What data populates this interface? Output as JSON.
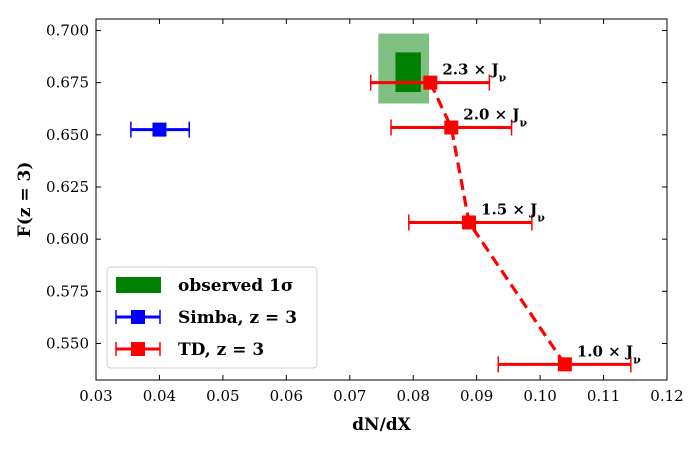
{
  "chart_data": {
    "type": "scatter",
    "xlabel": "dN/dX",
    "ylabel": "F(z = 3)",
    "xlim": [
      0.03,
      0.12
    ],
    "ylim": [
      0.5325,
      0.7055
    ],
    "xticks": [
      0.03,
      0.04,
      0.05,
      0.06,
      0.07,
      0.08,
      0.09,
      0.1,
      0.11,
      0.12
    ],
    "xtick_labels": [
      "0.03",
      "0.04",
      "0.05",
      "0.06",
      "0.07",
      "0.08",
      "0.09",
      "0.10",
      "0.11",
      "0.12"
    ],
    "yticks": [
      0.55,
      0.575,
      0.6,
      0.625,
      0.65,
      0.675,
      0.7
    ],
    "ytick_labels": [
      "0.550",
      "0.575",
      "0.600",
      "0.625",
      "0.650",
      "0.675",
      "0.700"
    ],
    "observed": {
      "name": "observed 1σ",
      "color": "#008000",
      "inner": {
        "x": [
          0.0772,
          0.0812
        ],
        "y": [
          0.6705,
          0.6895
        ]
      },
      "outer": {
        "x": [
          0.0745,
          0.0825
        ],
        "y": [
          0.665,
          0.6985
        ]
      }
    },
    "series": [
      {
        "name": "Simba, z = 3",
        "color": "#0000ff",
        "linestyle": "none",
        "points": [
          {
            "x": 0.04,
            "y": 0.6525,
            "xerr": [
              0.0355,
              0.0447
            ]
          }
        ]
      },
      {
        "name": "TD, z = 3",
        "color": "#ff0000",
        "linestyle": "dashed",
        "points": [
          {
            "x": 0.0827,
            "y": 0.675,
            "xerr": [
              0.0733,
              0.092
            ],
            "label": "2.3 × J_ν"
          },
          {
            "x": 0.086,
            "y": 0.6535,
            "xerr": [
              0.0765,
              0.0955
            ],
            "label": "2.0 × J_ν"
          },
          {
            "x": 0.0888,
            "y": 0.608,
            "xerr": [
              0.0793,
              0.0987
            ],
            "label": "1.5 × J_ν"
          },
          {
            "x": 0.1039,
            "y": 0.54,
            "xerr": [
              0.0934,
              0.1143
            ],
            "label": "1.0 × J_ν"
          }
        ]
      }
    ],
    "legend": {
      "position": "lower-left",
      "entries": [
        "observed 1σ",
        "Simba, z = 3",
        "TD, z = 3"
      ]
    }
  }
}
